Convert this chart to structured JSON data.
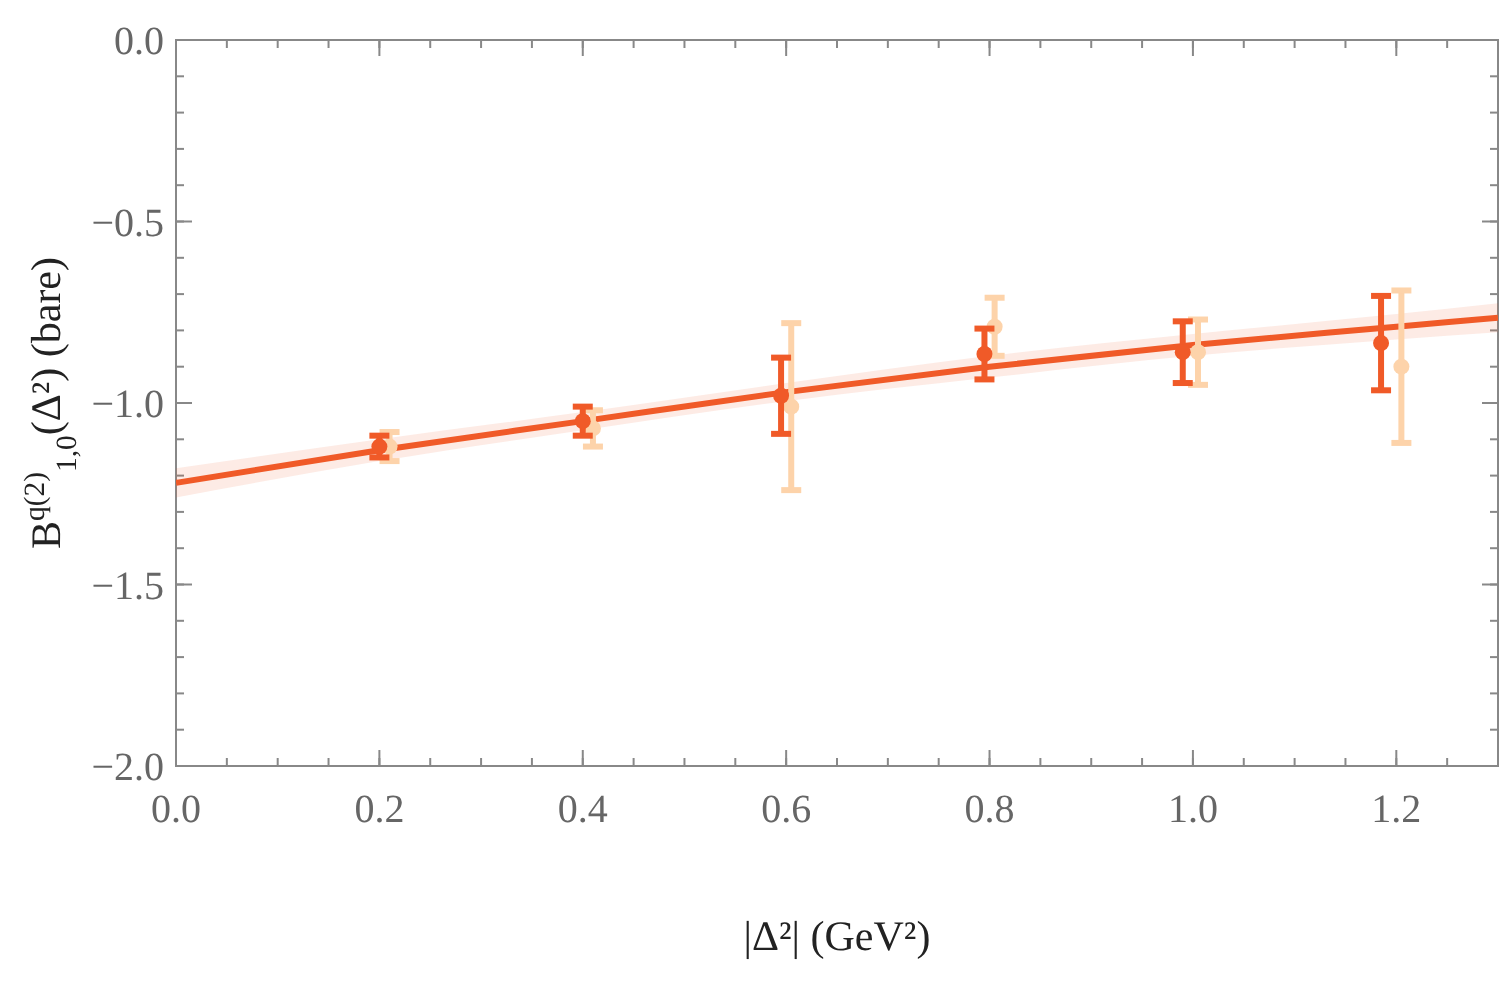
{
  "chart_data": {
    "type": "scatter",
    "xlabel": "|Δ²| (GeV²)",
    "ylabel": "B$^{q(2)}$$_{1,0}$(Δ²) (bare)",
    "xlim": [
      0,
      1.3
    ],
    "ylim": [
      -2,
      0
    ],
    "xticks": [
      {
        "value": 0,
        "label": "0.0"
      },
      {
        "value": 0.2,
        "label": "0.2"
      },
      {
        "value": 0.4,
        "label": "0.4"
      },
      {
        "value": 0.6,
        "label": "0.6"
      },
      {
        "value": 0.8,
        "label": "0.8"
      },
      {
        "value": 1,
        "label": "1.0"
      },
      {
        "value": 1.2,
        "label": "1.2"
      }
    ],
    "yticks": [
      {
        "value": -2,
        "label": "−2.0"
      },
      {
        "value": -1.5,
        "label": "−1.5"
      },
      {
        "value": -1,
        "label": "−1.0"
      },
      {
        "value": -0.5,
        "label": "−0.5"
      },
      {
        "value": 0,
        "label": "0.0"
      }
    ],
    "grid": false,
    "marker": "circle",
    "series": [
      {
        "type": "line",
        "marker": "none",
        "color": "#f05a28",
        "x": [
          0,
          0.2,
          0.4,
          0.6,
          0.8,
          1.0,
          1.2,
          1.3
        ],
        "values": [
          -1.22,
          -1.13,
          -1.05,
          -0.97,
          -0.9,
          -0.84,
          -0.79,
          -0.765
        ],
        "lower": [
          -1.26,
          -1.16,
          -1.075,
          -0.995,
          -0.93,
          -0.87,
          -0.825,
          -0.805
        ],
        "upper": [
          -1.18,
          -1.1,
          -1.025,
          -0.945,
          -0.87,
          -0.81,
          -0.755,
          -0.725
        ]
      },
      {
        "color": "#fdd3aa",
        "x": [
          0.21,
          0.41,
          0.605,
          0.805,
          1.005,
          1.205
        ],
        "values": [
          -1.12,
          -1.07,
          -1.01,
          -0.79,
          -0.86,
          -0.9
        ],
        "errors": [
          0.04,
          0.05,
          0.23,
          0.08,
          0.09,
          0.21
        ]
      },
      {
        "color": "#f05a28",
        "x": [
          0.2,
          0.4,
          0.595,
          0.795,
          0.99,
          1.185
        ],
        "values": [
          -1.12,
          -1.05,
          -0.98,
          -0.865,
          -0.86,
          -0.835
        ],
        "errors": [
          0.03,
          0.04,
          0.105,
          0.07,
          0.085,
          0.13
        ]
      }
    ]
  }
}
